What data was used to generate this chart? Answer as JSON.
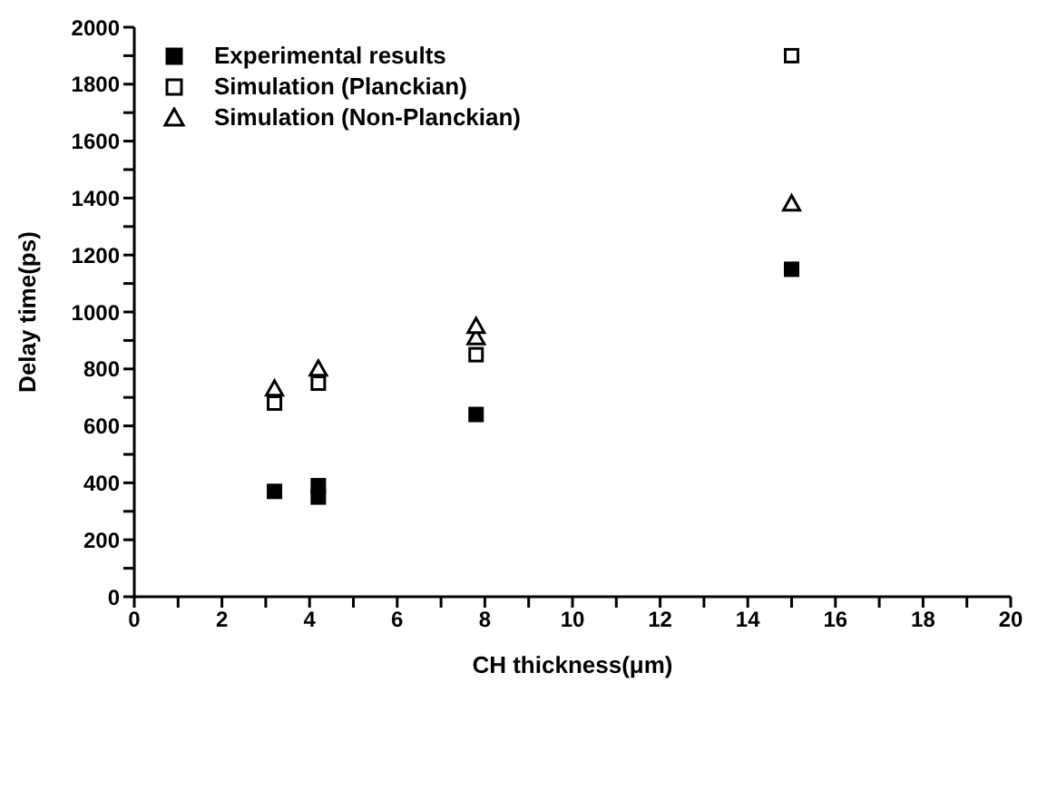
{
  "chart_data": {
    "type": "scatter",
    "xlabel": "CH thickness(μm)",
    "ylabel": "Delay time(ps)",
    "xlim": [
      0,
      20
    ],
    "ylim": [
      0,
      2000
    ],
    "xticks": [
      0,
      {
        "value": 1,
        "label": null
      },
      2,
      {
        "value": 3,
        "label": null
      },
      4,
      {
        "value": 5,
        "label": null
      },
      6,
      {
        "value": 7,
        "label": null
      },
      8,
      {
        "value": 9,
        "label": null
      },
      10,
      {
        "value": 11,
        "label": null
      },
      12,
      {
        "value": 13,
        "label": null
      },
      14,
      {
        "value": 15,
        "label": null
      },
      16,
      {
        "value": 17,
        "label": null
      },
      18,
      {
        "value": 19,
        "label": null
      },
      20
    ],
    "yticks": [
      0,
      {
        "value": 100,
        "label": null
      },
      200,
      {
        "value": 300,
        "label": null
      },
      400,
      {
        "value": 500,
        "label": null
      },
      600,
      {
        "value": 700,
        "label": null
      },
      800,
      {
        "value": 900,
        "label": null
      },
      1000,
      {
        "value": 1100,
        "label": null
      },
      1200,
      {
        "value": 1300,
        "label": null
      },
      1400,
      {
        "value": 1500,
        "label": null
      },
      1600,
      {
        "value": 1700,
        "label": null
      },
      1800,
      {
        "value": 1900,
        "label": null
      },
      2000
    ],
    "legend": "top left",
    "grid": false,
    "series": [
      {
        "name": "Experimental results",
        "color": "#000000",
        "marker": "square",
        "x": [
          3.2,
          4.2,
          4.2,
          7.8,
          15
        ],
        "values": [
          370,
          390,
          350,
          640,
          1150
        ]
      },
      {
        "name": "Simulation (Planckian)",
        "color": "#000000",
        "marker": "square",
        "x": [
          3.2,
          4.2,
          7.8,
          15
        ],
        "values": [
          680,
          750,
          850,
          1900
        ]
      },
      {
        "name": "Simulation (Non-Planckian)",
        "color": "#000000",
        "marker": "triangle",
        "x": [
          3.2,
          4.2,
          7.8,
          7.8,
          15
        ],
        "values": [
          730,
          800,
          910,
          950,
          1380
        ]
      }
    ]
  }
}
